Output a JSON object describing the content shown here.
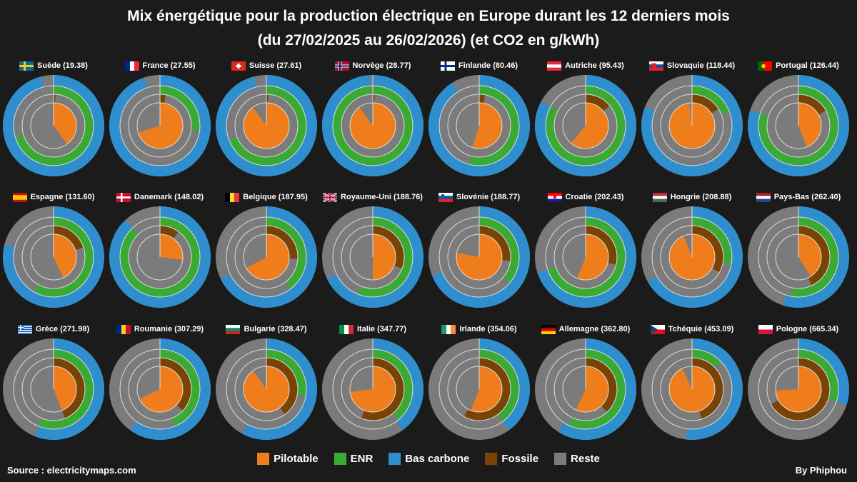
{
  "title_line1": "Mix énergétique pour la production électrique en Europe durant les 12 derniers mois",
  "title_line2": "(du 27/02/2025 au 26/02/2026) (et CO2 en g/kWh)",
  "source": "Source : electricitymaps.com",
  "credit": "By Phiphou",
  "colors": {
    "pilotable": "#f07d1c",
    "enr": "#3aaa35",
    "bas_carbone": "#2f8fce",
    "fossile": "#7a4306",
    "reste": "#7b7b7b",
    "separator": "#dddddd"
  },
  "legend": [
    {
      "key": "pilotable",
      "label": "Pilotable"
    },
    {
      "key": "enr",
      "label": "ENR"
    },
    {
      "key": "bas_carbone",
      "label": "Bas carbone"
    },
    {
      "key": "fossile",
      "label": "Fossile"
    },
    {
      "key": "reste",
      "label": "Reste"
    }
  ],
  "chart_data": {
    "type": "pie",
    "description_rings": [
      "Bas carbone (outer)",
      "ENR",
      "Fossile",
      "Pilotable (inner)"
    ],
    "countries": [
      {
        "label": "Suède (19.38)",
        "flag": "SE",
        "bas_carbone": 96,
        "enr": 70,
        "fossile": 1,
        "pilotable": 40
      },
      {
        "label": "France (27.55)",
        "flag": "FR",
        "bas_carbone": 95,
        "enr": 27,
        "fossile": 3,
        "pilotable": 70
      },
      {
        "label": "Suisse (27.61)",
        "flag": "CH",
        "bas_carbone": 96,
        "enr": 69,
        "fossile": 1,
        "pilotable": 90
      },
      {
        "label": "Norvège (28.77)",
        "flag": "NO",
        "bas_carbone": 99,
        "enr": 99,
        "fossile": 1,
        "pilotable": 90
      },
      {
        "label": "Finlande (80.46)",
        "flag": "FI",
        "bas_carbone": 91,
        "enr": 54,
        "fossile": 3,
        "pilotable": 55
      },
      {
        "label": "Autriche (95.43)",
        "flag": "AT",
        "bas_carbone": 83,
        "enr": 83,
        "fossile": 14,
        "pilotable": 61
      },
      {
        "label": "Slovaquie (118.44)",
        "flag": "SK",
        "bas_carbone": 81,
        "enr": 19,
        "fossile": 16,
        "pilotable": 98
      },
      {
        "label": "Portugal (126.44)",
        "flag": "PT",
        "bas_carbone": 80,
        "enr": 80,
        "fossile": 17,
        "pilotable": 44
      }
    ],
    "countries_row2": [
      {
        "label": "Espagne (131.60)",
        "flag": "ES",
        "bas_carbone": 79,
        "enr": 58,
        "fossile": 20,
        "pilotable": 43
      },
      {
        "label": "Danemark (148.02)",
        "flag": "DK",
        "bas_carbone": 88,
        "enr": 88,
        "fossile": 10,
        "pilotable": 27
      },
      {
        "label": "Belgique (187.95)",
        "flag": "BE",
        "bas_carbone": 68,
        "enr": 40,
        "fossile": 26,
        "pilotable": 67
      },
      {
        "label": "Royaume-Uni (188.76)",
        "flag": "GB",
        "bas_carbone": 68,
        "enr": 56,
        "fossile": 31,
        "pilotable": 50
      },
      {
        "label": "Slovénie (188.77)",
        "flag": "SI",
        "bas_carbone": 69,
        "enr": 36,
        "fossile": 27,
        "pilotable": 78
      },
      {
        "label": "Croatie (202.43)",
        "flag": "HR",
        "bas_carbone": 70,
        "enr": 70,
        "fossile": 29,
        "pilotable": 56
      },
      {
        "label": "Hongrie (208.88)",
        "flag": "HU",
        "bas_carbone": 67,
        "enr": 28,
        "fossile": 33,
        "pilotable": 94
      },
      {
        "label": "Pays-Bas (262.40)",
        "flag": "NL",
        "bas_carbone": 55,
        "enr": 53,
        "fossile": 43,
        "pilotable": 41
      }
    ],
    "countries_row3": [
      {
        "label": "Grèce (271.98)",
        "flag": "GR",
        "bas_carbone": 56,
        "enr": 56,
        "fossile": 44,
        "pilotable": 44
      },
      {
        "label": "Roumanie (307.29)",
        "flag": "RO",
        "bas_carbone": 60,
        "enr": 44,
        "fossile": 37,
        "pilotable": 68
      },
      {
        "label": "Bulgarie (328.47)",
        "flag": "BG",
        "bas_carbone": 58,
        "enr": 28,
        "fossile": 40,
        "pilotable": 90
      },
      {
        "label": "Italie (347.77)",
        "flag": "IT",
        "bas_carbone": 40,
        "enr": 39,
        "fossile": 56,
        "pilotable": 73
      },
      {
        "label": "Irlande (354.06)",
        "flag": "IE",
        "bas_carbone": 40,
        "enr": 40,
        "fossile": 58,
        "pilotable": 56
      },
      {
        "label": "Allemagne (362.80)",
        "flag": "DE",
        "bas_carbone": 59,
        "enr": 57,
        "fossile": 38,
        "pilotable": 57
      },
      {
        "label": "Tchéquie (453.09)",
        "flag": "CZ",
        "bas_carbone": 52,
        "enr": 13,
        "fossile": 45,
        "pilotable": 93
      },
      {
        "label": "Pologne (665.34)",
        "flag": "PL",
        "bas_carbone": 30,
        "enr": 30,
        "fossile": 67,
        "pilotable": 74
      }
    ]
  }
}
